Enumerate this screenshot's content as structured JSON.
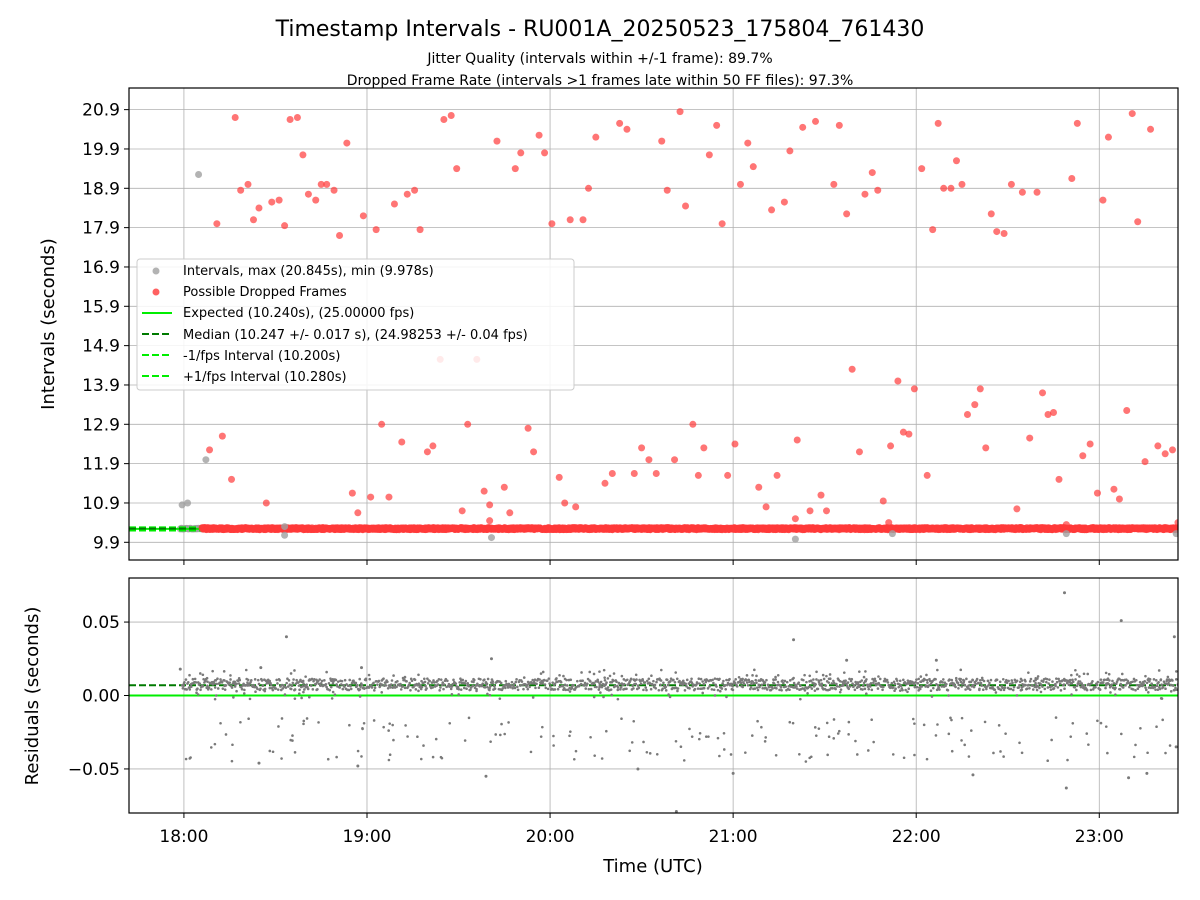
{
  "chart_data": [
    {
      "type": "scatter",
      "title": "Timestamp Intervals - RU001A_20250523_175804_761430",
      "subtitle_lines": [
        "Jitter Quality (intervals within +/-1 frame): 89.7%",
        "Dropped Frame Rate (intervals >1 frames late within 50 FF files): 97.3%"
      ],
      "ylabel": "Intervals (seconds)",
      "xlim_hours": [
        17.7,
        23.43
      ],
      "ylim": [
        9.45,
        21.45
      ],
      "yticks": [
        9.9,
        10.9,
        11.9,
        12.9,
        13.9,
        14.9,
        15.9,
        16.9,
        17.9,
        18.9,
        19.9,
        20.9
      ],
      "grid": true,
      "legend_position": "center-left",
      "colors": {
        "normal": "#a0a0a0",
        "dropped": "#ff3a3a",
        "expected": "#00ee00",
        "median": "#007a00"
      },
      "series": [
        {
          "name": "Intervals, max (20.845s), min (9.978s)",
          "marker": "gray"
        },
        {
          "name": "Possible Dropped Frames",
          "marker": "red"
        },
        {
          "name": "Expected (10.240s), (25.00000 fps)",
          "line": "solid-green"
        },
        {
          "name": "Median (10.247 +/- 0.017 s), (24.98253 +/- 0.04 fps)",
          "line": "dashed-darkgreen"
        },
        {
          "name": "-1/fps Interval (10.200s)",
          "line": "dashed-green"
        },
        {
          "name": "+1/fps Interval (10.280s)",
          "line": "dashed-green"
        }
      ],
      "baseline_interval": 10.247,
      "expected": 10.24,
      "lower_bound": 10.2,
      "upper_bound": 10.28,
      "baseline_red_start_hour": 18.1,
      "gray_points": [
        {
          "x": 17.99,
          "y": 10.85
        },
        {
          "x": 18.02,
          "y": 10.9
        },
        {
          "x": 18.08,
          "y": 19.25
        },
        {
          "x": 18.12,
          "y": 12.0
        },
        {
          "x": 18.55,
          "y": 10.08
        },
        {
          "x": 19.68,
          "y": 10.02
        },
        {
          "x": 21.34,
          "y": 9.98
        },
        {
          "x": 21.87,
          "y": 10.12
        },
        {
          "x": 22.82,
          "y": 10.12
        },
        {
          "x": 23.42,
          "y": 10.12
        },
        {
          "x": 18.55,
          "y": 10.3
        }
      ],
      "red_points": [
        {
          "x": 18.14,
          "y": 12.25
        },
        {
          "x": 18.18,
          "y": 18.0
        },
        {
          "x": 18.21,
          "y": 12.6
        },
        {
          "x": 18.26,
          "y": 11.5
        },
        {
          "x": 18.28,
          "y": 20.7
        },
        {
          "x": 18.31,
          "y": 18.85
        },
        {
          "x": 18.35,
          "y": 19.0
        },
        {
          "x": 18.38,
          "y": 18.1
        },
        {
          "x": 18.41,
          "y": 18.4
        },
        {
          "x": 18.45,
          "y": 10.9
        },
        {
          "x": 18.48,
          "y": 18.55
        },
        {
          "x": 18.52,
          "y": 18.6
        },
        {
          "x": 18.55,
          "y": 17.95
        },
        {
          "x": 18.58,
          "y": 20.65
        },
        {
          "x": 18.62,
          "y": 20.7
        },
        {
          "x": 18.65,
          "y": 19.75
        },
        {
          "x": 18.68,
          "y": 18.75
        },
        {
          "x": 18.72,
          "y": 18.6
        },
        {
          "x": 18.75,
          "y": 19.0
        },
        {
          "x": 18.78,
          "y": 19.0
        },
        {
          "x": 18.82,
          "y": 18.85
        },
        {
          "x": 18.85,
          "y": 17.7
        },
        {
          "x": 18.89,
          "y": 20.05
        },
        {
          "x": 18.92,
          "y": 11.15
        },
        {
          "x": 18.95,
          "y": 10.65
        },
        {
          "x": 18.98,
          "y": 18.2
        },
        {
          "x": 19.02,
          "y": 11.05
        },
        {
          "x": 19.05,
          "y": 17.85
        },
        {
          "x": 19.08,
          "y": 12.9
        },
        {
          "x": 19.12,
          "y": 11.05
        },
        {
          "x": 19.15,
          "y": 18.5
        },
        {
          "x": 19.19,
          "y": 12.45
        },
        {
          "x": 19.22,
          "y": 18.75
        },
        {
          "x": 19.26,
          "y": 18.85
        },
        {
          "x": 19.29,
          "y": 17.85
        },
        {
          "x": 19.33,
          "y": 12.2
        },
        {
          "x": 19.36,
          "y": 12.35
        },
        {
          "x": 19.4,
          "y": 14.55
        },
        {
          "x": 19.42,
          "y": 20.65
        },
        {
          "x": 19.46,
          "y": 20.75
        },
        {
          "x": 19.49,
          "y": 19.4
        },
        {
          "x": 19.52,
          "y": 10.7
        },
        {
          "x": 19.55,
          "y": 12.9
        },
        {
          "x": 19.6,
          "y": 14.55
        },
        {
          "x": 19.64,
          "y": 11.2
        },
        {
          "x": 19.67,
          "y": 10.85
        },
        {
          "x": 19.67,
          "y": 10.45
        },
        {
          "x": 19.71,
          "y": 20.1
        },
        {
          "x": 19.75,
          "y": 11.3
        },
        {
          "x": 19.78,
          "y": 10.65
        },
        {
          "x": 19.81,
          "y": 19.4
        },
        {
          "x": 19.84,
          "y": 19.8
        },
        {
          "x": 19.88,
          "y": 12.8
        },
        {
          "x": 19.91,
          "y": 12.2
        },
        {
          "x": 19.94,
          "y": 20.25
        },
        {
          "x": 19.97,
          "y": 19.8
        },
        {
          "x": 20.01,
          "y": 18.0
        },
        {
          "x": 20.05,
          "y": 11.55
        },
        {
          "x": 20.08,
          "y": 10.9
        },
        {
          "x": 20.11,
          "y": 18.1
        },
        {
          "x": 20.14,
          "y": 10.8
        },
        {
          "x": 20.18,
          "y": 18.1
        },
        {
          "x": 20.21,
          "y": 18.9
        },
        {
          "x": 20.25,
          "y": 20.2
        },
        {
          "x": 20.3,
          "y": 11.4
        },
        {
          "x": 20.34,
          "y": 11.65
        },
        {
          "x": 20.38,
          "y": 20.55
        },
        {
          "x": 20.42,
          "y": 20.4
        },
        {
          "x": 20.46,
          "y": 11.65
        },
        {
          "x": 20.5,
          "y": 12.3
        },
        {
          "x": 20.54,
          "y": 12.0
        },
        {
          "x": 20.58,
          "y": 11.65
        },
        {
          "x": 20.61,
          "y": 20.1
        },
        {
          "x": 20.64,
          "y": 18.85
        },
        {
          "x": 20.68,
          "y": 12.0
        },
        {
          "x": 20.71,
          "y": 20.85
        },
        {
          "x": 20.74,
          "y": 18.45
        },
        {
          "x": 20.78,
          "y": 12.9
        },
        {
          "x": 20.81,
          "y": 11.6
        },
        {
          "x": 20.84,
          "y": 12.3
        },
        {
          "x": 20.87,
          "y": 19.75
        },
        {
          "x": 20.91,
          "y": 20.5
        },
        {
          "x": 20.94,
          "y": 18.0
        },
        {
          "x": 20.97,
          "y": 11.6
        },
        {
          "x": 21.01,
          "y": 12.4
        },
        {
          "x": 21.04,
          "y": 19.0
        },
        {
          "x": 21.08,
          "y": 20.05
        },
        {
          "x": 21.11,
          "y": 19.45
        },
        {
          "x": 21.14,
          "y": 11.3
        },
        {
          "x": 21.18,
          "y": 10.8
        },
        {
          "x": 21.21,
          "y": 18.35
        },
        {
          "x": 21.24,
          "y": 11.6
        },
        {
          "x": 21.28,
          "y": 18.55
        },
        {
          "x": 21.31,
          "y": 19.85
        },
        {
          "x": 21.35,
          "y": 12.5
        },
        {
          "x": 21.34,
          "y": 10.5
        },
        {
          "x": 21.38,
          "y": 20.45
        },
        {
          "x": 21.42,
          "y": 10.7
        },
        {
          "x": 21.45,
          "y": 20.6
        },
        {
          "x": 21.48,
          "y": 11.1
        },
        {
          "x": 21.51,
          "y": 10.7
        },
        {
          "x": 21.55,
          "y": 19.0
        },
        {
          "x": 21.58,
          "y": 20.5
        },
        {
          "x": 21.62,
          "y": 18.25
        },
        {
          "x": 21.65,
          "y": 14.3
        },
        {
          "x": 21.69,
          "y": 12.2
        },
        {
          "x": 21.72,
          "y": 18.75
        },
        {
          "x": 21.76,
          "y": 19.3
        },
        {
          "x": 21.79,
          "y": 18.85
        },
        {
          "x": 21.82,
          "y": 10.95
        },
        {
          "x": 21.85,
          "y": 10.4
        },
        {
          "x": 21.86,
          "y": 12.35
        },
        {
          "x": 21.9,
          "y": 14.0
        },
        {
          "x": 21.93,
          "y": 12.7
        },
        {
          "x": 21.96,
          "y": 12.65
        },
        {
          "x": 21.99,
          "y": 13.8
        },
        {
          "x": 22.03,
          "y": 19.4
        },
        {
          "x": 22.06,
          "y": 11.6
        },
        {
          "x": 22.09,
          "y": 17.85
        },
        {
          "x": 22.12,
          "y": 20.55
        },
        {
          "x": 22.15,
          "y": 18.9
        },
        {
          "x": 22.19,
          "y": 18.9
        },
        {
          "x": 22.22,
          "y": 19.6
        },
        {
          "x": 22.25,
          "y": 19.0
        },
        {
          "x": 22.28,
          "y": 13.15
        },
        {
          "x": 22.32,
          "y": 13.4
        },
        {
          "x": 22.35,
          "y": 13.8
        },
        {
          "x": 22.38,
          "y": 12.3
        },
        {
          "x": 22.41,
          "y": 18.25
        },
        {
          "x": 22.44,
          "y": 17.8
        },
        {
          "x": 22.48,
          "y": 17.75
        },
        {
          "x": 22.52,
          "y": 19.0
        },
        {
          "x": 22.55,
          "y": 10.75
        },
        {
          "x": 22.58,
          "y": 18.8
        },
        {
          "x": 22.62,
          "y": 12.55
        },
        {
          "x": 22.66,
          "y": 18.8
        },
        {
          "x": 22.69,
          "y": 13.7
        },
        {
          "x": 22.72,
          "y": 13.15
        },
        {
          "x": 22.75,
          "y": 13.2
        },
        {
          "x": 22.78,
          "y": 11.5
        },
        {
          "x": 22.82,
          "y": 10.35
        },
        {
          "x": 22.85,
          "y": 19.15
        },
        {
          "x": 22.88,
          "y": 20.55
        },
        {
          "x": 22.91,
          "y": 12.1
        },
        {
          "x": 22.95,
          "y": 12.4
        },
        {
          "x": 22.99,
          "y": 11.15
        },
        {
          "x": 23.02,
          "y": 18.6
        },
        {
          "x": 23.05,
          "y": 20.2
        },
        {
          "x": 23.08,
          "y": 11.25
        },
        {
          "x": 23.11,
          "y": 11.0
        },
        {
          "x": 23.15,
          "y": 13.25
        },
        {
          "x": 23.18,
          "y": 20.8
        },
        {
          "x": 23.21,
          "y": 18.05
        },
        {
          "x": 23.25,
          "y": 11.95
        },
        {
          "x": 23.28,
          "y": 20.4
        },
        {
          "x": 23.32,
          "y": 12.35
        },
        {
          "x": 23.36,
          "y": 12.15
        },
        {
          "x": 23.4,
          "y": 12.25
        },
        {
          "x": 23.43,
          "y": 10.4
        }
      ]
    },
    {
      "type": "scatter",
      "ylabel": "Residuals (seconds)",
      "xlabel": "Time (UTC)",
      "xlim_hours": [
        17.7,
        23.43
      ],
      "ylim": [
        -0.08,
        0.08
      ],
      "yticks": [
        0.05,
        0.0,
        -0.05
      ],
      "ytick_labels": [
        "0.05",
        "0.00",
        "−0.05"
      ],
      "xticks_hours": [
        18,
        19,
        20,
        21,
        22,
        23
      ],
      "xtick_labels": [
        "18:00",
        "19:00",
        "20:00",
        "21:00",
        "22:00",
        "23:00"
      ],
      "grid": true,
      "median_residual": 0.007,
      "expected_residual": 0.0,
      "band_center": 0.0075,
      "band_halfwidth": 0.004,
      "outliers": [
        {
          "x": 17.98,
          "y": 0.018
        },
        {
          "x": 18.56,
          "y": 0.04
        },
        {
          "x": 19.68,
          "y": 0.025
        },
        {
          "x": 20.69,
          "y": -0.079
        },
        {
          "x": 20.48,
          "y": -0.05
        },
        {
          "x": 21.0,
          "y": -0.053
        },
        {
          "x": 21.33,
          "y": 0.038
        },
        {
          "x": 22.31,
          "y": -0.054
        },
        {
          "x": 22.81,
          "y": 0.07
        },
        {
          "x": 22.82,
          "y": -0.063
        },
        {
          "x": 23.12,
          "y": 0.051
        },
        {
          "x": 23.16,
          "y": -0.056
        },
        {
          "x": 23.41,
          "y": 0.04
        },
        {
          "x": 18.41,
          "y": -0.046
        },
        {
          "x": 18.95,
          "y": -0.048
        },
        {
          "x": 19.65,
          "y": -0.055
        },
        {
          "x": 23.26,
          "y": -0.053
        },
        {
          "x": 18.42,
          "y": 0.019
        },
        {
          "x": 18.97,
          "y": 0.019
        },
        {
          "x": 21.62,
          "y": 0.024
        },
        {
          "x": 22.11,
          "y": 0.024
        },
        {
          "x": 23.42,
          "y": -0.035
        }
      ]
    }
  ]
}
